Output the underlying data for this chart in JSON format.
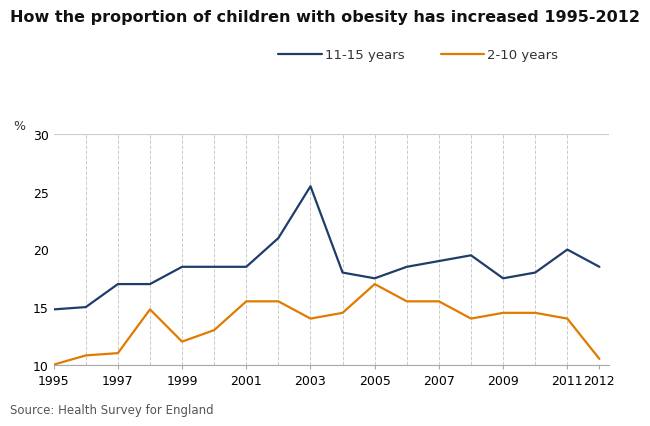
{
  "title": "How the proportion of children with obesity has increased 1995-2012",
  "ylabel": "%",
  "source": "Source: Health Survey for England",
  "ylim": [
    10,
    30
  ],
  "yticks": [
    10,
    15,
    20,
    25,
    30
  ],
  "background_color": "#ffffff",
  "series": [
    {
      "label": "11-15 years",
      "color": "#1f3d6b",
      "years": [
        1995,
        1996,
        1997,
        1998,
        1999,
        2000,
        2001,
        2002,
        2003,
        2004,
        2005,
        2006,
        2007,
        2008,
        2009,
        2010,
        2011,
        2012
      ],
      "values": [
        14.8,
        15.0,
        17.0,
        17.0,
        18.5,
        18.5,
        18.5,
        21.0,
        25.5,
        18.0,
        17.5,
        18.5,
        19.0,
        19.5,
        17.5,
        18.0,
        20.0,
        18.5
      ]
    },
    {
      "label": "2-10 years",
      "color": "#e07b00",
      "years": [
        1995,
        1996,
        1997,
        1998,
        1999,
        2000,
        2001,
        2002,
        2003,
        2004,
        2005,
        2006,
        2007,
        2008,
        2009,
        2010,
        2011,
        2012
      ],
      "values": [
        10.0,
        10.8,
        11.0,
        14.8,
        12.0,
        13.0,
        15.5,
        15.5,
        14.0,
        14.5,
        17.0,
        15.5,
        15.5,
        14.0,
        14.5,
        14.5,
        14.0,
        10.5
      ]
    }
  ],
  "vgrid_years": [
    1996,
    1997,
    1998,
    1999,
    2000,
    2001,
    2002,
    2003,
    2004,
    2005,
    2006,
    2007,
    2008,
    2009,
    2010,
    2011
  ],
  "xtick_labels": [
    "1995",
    "1997",
    "1999",
    "2001",
    "2003",
    "2005",
    "2007",
    "2009",
    "2011",
    "2012"
  ],
  "xtick_positions": [
    1995,
    1997,
    1999,
    2001,
    2003,
    2005,
    2007,
    2009,
    2011,
    2012
  ],
  "title_fontsize": 11.5,
  "legend_fontsize": 9.5,
  "axis_fontsize": 9,
  "source_fontsize": 8.5,
  "line_width": 1.6
}
